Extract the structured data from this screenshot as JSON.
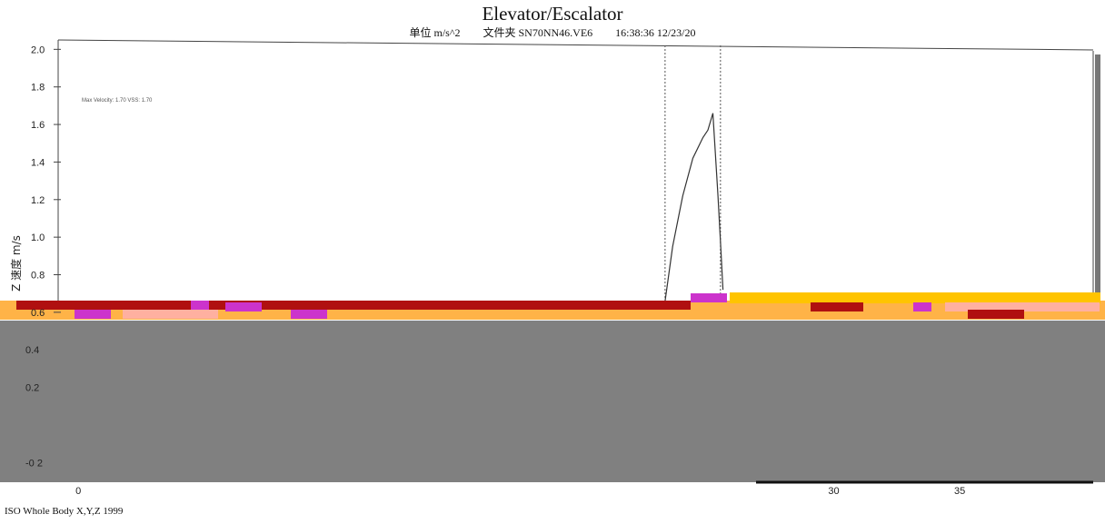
{
  "title": "Elevator/Escalator",
  "subtitle": {
    "unit": "单位 m/s^2",
    "file": "文件夹 SN70NN46.VE6",
    "timestamp": "16:38:36 12/23/20"
  },
  "footer": "ISO Whole Body X,Y,Z  1999",
  "chart_data": {
    "type": "line",
    "title": "Elevator/Escalator",
    "ylabel": "Z 速度 m/s",
    "xlabel": "",
    "ylim": [
      -0.3,
      2.05
    ],
    "xlim": [
      -0.8,
      40.3
    ],
    "y_ticks": [
      "2.0",
      "1.8",
      "1.6",
      "1.4",
      "1.2",
      "1.0",
      "0.8",
      "0.6",
      "0.4",
      "0.2",
      "-0 2"
    ],
    "y_tick_values": [
      2.0,
      1.8,
      1.6,
      1.4,
      1.2,
      1.0,
      0.8,
      0.6,
      0.4,
      0.2,
      -0.2
    ],
    "x_ticks": [
      "0",
      "30",
      "35"
    ],
    "x_tick_values": [
      0,
      30,
      35
    ],
    "annotation": "Max Velocity: 1.70  VSS: 1.70",
    "markers_x": [
      23.3,
      25.5
    ],
    "series": [
      {
        "x": [
          23.3,
          23.6,
          24.0,
          24.4,
          24.8,
          25.0,
          25.2,
          25.4,
          25.5,
          25.6
        ],
        "y": [
          0.66,
          0.95,
          1.22,
          1.42,
          1.53,
          1.57,
          1.66,
          1.22,
          0.98,
          0.72
        ]
      }
    ],
    "grid": false,
    "colors": {
      "line": "#333333",
      "gray_panel": "#808080",
      "orange": "#ffb347",
      "red": "#b01010",
      "magenta": "#cc33cc",
      "pink": "#ffb0a0",
      "yellow": "#ffc400"
    }
  }
}
